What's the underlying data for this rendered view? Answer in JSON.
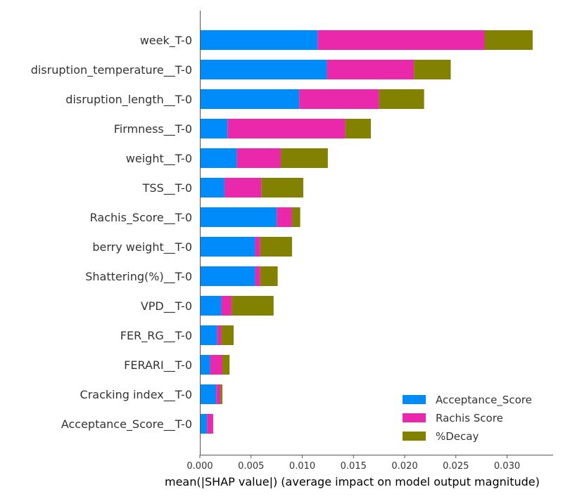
{
  "chart_data": {
    "type": "bar",
    "orientation": "horizontal",
    "stacked": true,
    "categories": [
      "week_T-0",
      "disruption_temperature__T-0",
      "disruption_length__T-0",
      "Firmness__T-0",
      "weight__T-0",
      "TSS__T-0",
      "Rachis_Score__T-0",
      "berry weight__T-0",
      "Shattering(%)__T-0",
      "VPD__T-0",
      "FER_RG__T-0",
      "FERARI__T-0",
      "Cracking index__T-0",
      "Acceptance_Score__T-0"
    ],
    "series": [
      {
        "name": "Acceptance_Score",
        "color": "#008bfb",
        "values": [
          0.0115,
          0.0124,
          0.0097,
          0.0027,
          0.0036,
          0.0024,
          0.0075,
          0.0054,
          0.0054,
          0.0021,
          0.0017,
          0.001,
          0.0016,
          0.0007
        ]
      },
      {
        "name": "Rachis Score",
        "color": "#e928ac",
        "values": [
          0.0163,
          0.0085,
          0.0078,
          0.0115,
          0.0043,
          0.0036,
          0.0015,
          0.0005,
          0.0005,
          0.001,
          0.0004,
          0.0012,
          0.0004,
          0.0006
        ]
      },
      {
        "name": "%Decay",
        "color": "#838200",
        "values": [
          0.0047,
          0.0036,
          0.0044,
          0.0025,
          0.0046,
          0.0041,
          0.0008,
          0.0031,
          0.0017,
          0.0041,
          0.0012,
          0.0007,
          0.0002,
          0.0
        ]
      }
    ],
    "xlabel": "mean(|SHAP value|) (average impact on model output magnitude)",
    "xlim": [
      0,
      0.0345
    ],
    "xticks": [
      "0.000",
      "0.005",
      "0.010",
      "0.015",
      "0.020",
      "0.025",
      "0.030"
    ],
    "xtick_values": [
      0,
      0.005,
      0.01,
      0.015,
      0.02,
      0.025,
      0.03
    ],
    "legend": "bottom-right",
    "grid": false
  }
}
